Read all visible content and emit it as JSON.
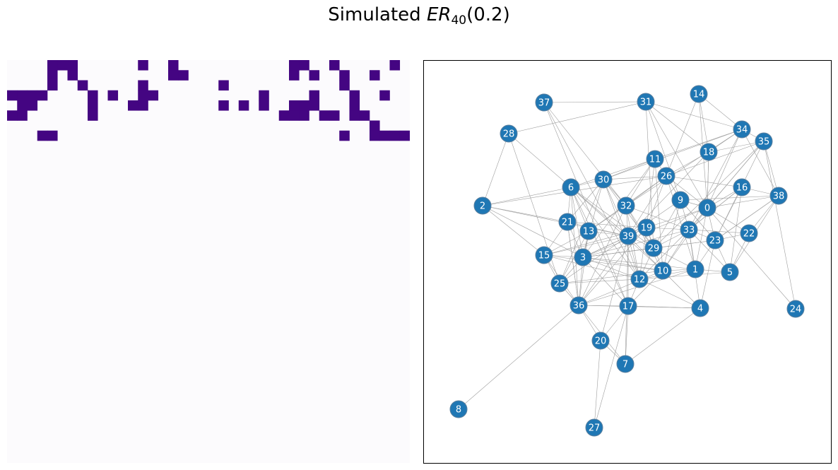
{
  "title": {
    "prefix": "Simulated ",
    "er": "ER",
    "subscript": "40",
    "suffix": "(0.2)"
  },
  "colors": {
    "filled": "#440582",
    "empty": "#fcfbfd",
    "node": "#1f77b4",
    "node_edge": "#5a7f9e",
    "edge": "#9e9e9e",
    "frame": "#000000"
  },
  "matrix": {
    "size": 40,
    "rows": [
      "0000111000000100100000000000110010000010",
      "0000101000000000110000000000101001001000",
      "0000100100000100000001000000000001000000",
      "1111000010100110000000000100001000100100",
      "0110000010001100000001010100111000100000",
      "1100000010000000000000000001110110110000",
      "0000000000000000000000000000000000001000",
      "0001100000000000000000000000000001001111",
      "0000000000000000000000000000000000000000",
      "0000000000000000000000000000000000000000",
      "0000000000000000000000000000000000000000",
      "0000000000000000000000000000000000000000",
      "0000000000000000000000000000000000000000",
      "0000000000000000000000000000000000000000",
      "0000000000000000000000000000000000000000",
      "0000000000000000000000000000000000000000",
      "0000000000000000000000000000000000000000",
      "0000000000000000000000000000000000000000",
      "0000000000000000000000000000000000000000",
      "0000000000000000000000000000000000000000",
      "0000000000000000000000000000000000000000",
      "0000000000000000000000000000000000000000",
      "0000000000000000000000000000000000000000",
      "0000000000000000000000000000000000000000",
      "0000000000000000000000000000000000000000",
      "0000000000000000000000000000000000000000",
      "0000000000000000000000000000000000000000",
      "0000000000000000000000000000000000000000",
      "0000000000000000000000000000000000000000",
      "0000000000000000000000000000000000000000",
      "0000000000000000000000000000000000000000",
      "0000000000000000000000000000000000000000",
      "0000000000000000000000000000000000000000",
      "0000000000000000000000000000000000000000",
      "0000000000000000000000000000000000000000",
      "0000000000000000000000000000000000000000",
      "0000000000000000000000000000000000000000",
      "0000000000000000000000000000000000000000",
      "0000000000000000000000000000000000000000",
      "0000000000000000000000000000000000000000"
    ]
  },
  "graph": {
    "nodes": [
      "0",
      "1",
      "2",
      "3",
      "4",
      "5",
      "6",
      "7",
      "8",
      "9",
      "10",
      "11",
      "12",
      "13",
      "14",
      "15",
      "16",
      "17",
      "18",
      "19",
      "20",
      "21",
      "22",
      "23",
      "24",
      "25",
      "26",
      "27",
      "28",
      "29",
      "30",
      "31",
      "32",
      "33",
      "34",
      "35",
      "36",
      "37",
      "38",
      "39"
    ],
    "edges": [
      [
        0,
        18
      ],
      [
        0,
        16
      ],
      [
        0,
        38
      ],
      [
        0,
        22
      ],
      [
        0,
        33
      ],
      [
        0,
        9
      ],
      [
        0,
        23
      ],
      [
        0,
        35
      ],
      [
        0,
        34
      ],
      [
        0,
        26
      ],
      [
        0,
        1
      ],
      [
        0,
        10
      ],
      [
        0,
        19
      ],
      [
        0,
        31
      ],
      [
        0,
        3
      ],
      [
        1,
        33
      ],
      [
        1,
        10
      ],
      [
        1,
        5
      ],
      [
        1,
        23
      ],
      [
        1,
        26
      ],
      [
        1,
        29
      ],
      [
        1,
        3
      ],
      [
        1,
        36
      ],
      [
        1,
        12
      ],
      [
        2,
        28
      ],
      [
        2,
        21
      ],
      [
        2,
        15
      ],
      [
        2,
        3
      ],
      [
        2,
        6
      ],
      [
        2,
        39
      ],
      [
        2,
        26
      ],
      [
        3,
        36
      ],
      [
        3,
        15
      ],
      [
        3,
        21
      ],
      [
        3,
        13
      ],
      [
        3,
        25
      ],
      [
        3,
        12
      ],
      [
        3,
        10
      ],
      [
        3,
        39
      ],
      [
        3,
        6
      ],
      [
        3,
        30
      ],
      [
        3,
        19
      ],
      [
        3,
        29
      ],
      [
        3,
        33
      ],
      [
        3,
        23
      ],
      [
        4,
        12
      ],
      [
        4,
        10
      ],
      [
        4,
        7
      ],
      [
        4,
        23
      ],
      [
        4,
        33
      ],
      [
        4,
        36
      ],
      [
        4,
        17
      ],
      [
        5,
        22
      ],
      [
        5,
        33
      ],
      [
        5,
        23
      ],
      [
        5,
        38
      ],
      [
        5,
        16
      ],
      [
        5,
        12
      ],
      [
        6,
        30
      ],
      [
        6,
        21
      ],
      [
        6,
        13
      ],
      [
        6,
        39
      ],
      [
        6,
        29
      ],
      [
        6,
        12
      ],
      [
        6,
        36
      ],
      [
        6,
        17
      ],
      [
        6,
        10
      ],
      [
        6,
        11
      ],
      [
        7,
        17
      ],
      [
        7,
        36
      ],
      [
        7,
        20
      ],
      [
        7,
        39
      ],
      [
        8,
        36
      ],
      [
        9,
        26
      ],
      [
        9,
        0
      ],
      [
        9,
        29
      ],
      [
        9,
        39
      ],
      [
        9,
        23
      ],
      [
        9,
        10
      ],
      [
        9,
        33
      ],
      [
        10,
        19
      ],
      [
        10,
        33
      ],
      [
        10,
        32
      ],
      [
        10,
        17
      ],
      [
        10,
        15
      ],
      [
        10,
        36
      ],
      [
        10,
        11
      ],
      [
        11,
        26
      ],
      [
        11,
        30
      ],
      [
        11,
        34
      ],
      [
        11,
        32
      ],
      [
        11,
        3
      ],
      [
        11,
        19
      ],
      [
        12,
        39
      ],
      [
        12,
        29
      ],
      [
        12,
        19
      ],
      [
        12,
        25
      ],
      [
        12,
        15
      ],
      [
        12,
        33
      ],
      [
        12,
        17
      ],
      [
        13,
        39
      ],
      [
        13,
        25
      ],
      [
        13,
        36
      ],
      [
        13,
        15
      ],
      [
        13,
        26
      ],
      [
        13,
        32
      ],
      [
        14,
        18
      ],
      [
        14,
        26
      ],
      [
        14,
        34
      ],
      [
        14,
        0
      ],
      [
        15,
        21
      ],
      [
        15,
        39
      ],
      [
        15,
        25
      ],
      [
        15,
        19
      ],
      [
        16,
        38
      ],
      [
        16,
        23
      ],
      [
        16,
        26
      ],
      [
        16,
        33
      ],
      [
        17,
        36
      ],
      [
        17,
        20
      ],
      [
        17,
        39
      ],
      [
        17,
        3
      ],
      [
        17,
        4
      ],
      [
        18,
        26
      ],
      [
        18,
        34
      ],
      [
        18,
        35
      ],
      [
        18,
        0
      ],
      [
        18,
        39
      ],
      [
        19,
        33
      ],
      [
        19,
        29
      ],
      [
        19,
        21
      ],
      [
        19,
        26
      ],
      [
        19,
        36
      ],
      [
        19,
        3
      ],
      [
        20,
        36
      ],
      [
        20,
        27
      ],
      [
        20,
        39
      ],
      [
        21,
        36
      ],
      [
        21,
        30
      ],
      [
        21,
        39
      ],
      [
        22,
        38
      ],
      [
        22,
        33
      ],
      [
        22,
        23
      ],
      [
        23,
        33
      ],
      [
        23,
        38
      ],
      [
        23,
        35
      ],
      [
        24,
        0
      ],
      [
        24,
        35
      ],
      [
        25,
        36
      ],
      [
        25,
        39
      ],
      [
        25,
        30
      ],
      [
        25,
        10
      ],
      [
        26,
        30
      ],
      [
        26,
        32
      ],
      [
        26,
        35
      ],
      [
        26,
        9
      ],
      [
        26,
        39
      ],
      [
        27,
        17
      ],
      [
        28,
        31
      ],
      [
        28,
        6
      ],
      [
        28,
        25
      ],
      [
        29,
        33
      ],
      [
        29,
        32
      ],
      [
        29,
        39
      ],
      [
        29,
        23
      ],
      [
        29,
        35
      ],
      [
        29,
        3
      ],
      [
        30,
        32
      ],
      [
        30,
        39
      ],
      [
        30,
        34
      ],
      [
        30,
        29
      ],
      [
        30,
        12
      ],
      [
        31,
        34
      ],
      [
        31,
        29
      ],
      [
        31,
        9
      ],
      [
        31,
        18
      ],
      [
        32,
        39
      ],
      [
        32,
        36
      ],
      [
        32,
        33
      ],
      [
        32,
        12
      ],
      [
        33,
        34
      ],
      [
        33,
        16
      ],
      [
        33,
        35
      ],
      [
        34,
        35
      ],
      [
        34,
        38
      ],
      [
        34,
        32
      ],
      [
        35,
        38
      ],
      [
        36,
        39
      ],
      [
        36,
        15
      ],
      [
        36,
        21
      ],
      [
        37,
        31
      ],
      [
        37,
        12
      ],
      [
        37,
        32
      ],
      [
        37,
        17
      ],
      [
        38,
        23
      ],
      [
        38,
        9
      ],
      [
        39,
        10
      ],
      [
        39,
        19
      ]
    ]
  }
}
